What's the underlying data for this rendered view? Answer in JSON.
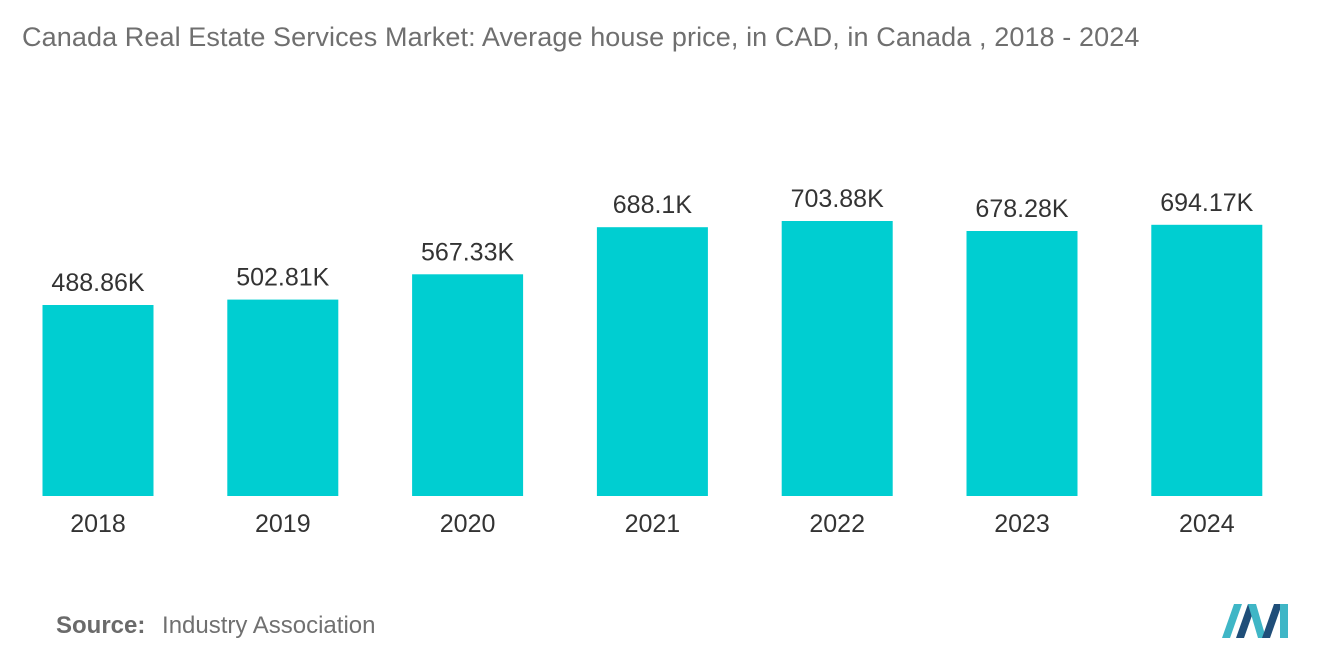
{
  "chart_data": {
    "type": "bar",
    "title": "Canada Real Estate Services Market: Average house price, in CAD, in Canada , 2018 - 2024",
    "categories": [
      "2018",
      "2019",
      "2020",
      "2021",
      "2022",
      "2023",
      "2024"
    ],
    "values": [
      488.86,
      502.81,
      567.33,
      688.1,
      703.88,
      678.28,
      694.17
    ],
    "value_labels": [
      "488.86K",
      "502.81K",
      "567.33K",
      "688.1K",
      "703.88K",
      "678.28K",
      "694.17K"
    ],
    "unit": "K CAD",
    "xlabel": "",
    "ylabel": "",
    "ylim": [
      0,
      703.88
    ],
    "grid": false,
    "legend": "none"
  },
  "colors": {
    "bar": "#00ced1",
    "title": "#6f6f6f",
    "text": "#333333",
    "logo_dark": "#1f4e79",
    "logo_light": "#3fb6c6"
  },
  "source": {
    "label": "Source:",
    "text": "Industry Association"
  },
  "logo": {
    "icon": "mordor-logo-icon"
  }
}
